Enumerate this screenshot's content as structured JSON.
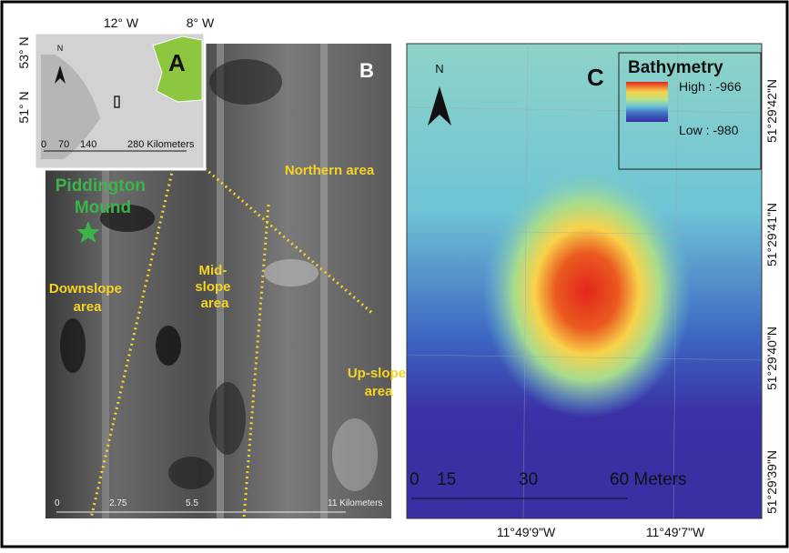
{
  "panel_a": {
    "label": "A",
    "north": "N",
    "lon_labels": [
      "12° W",
      "8° W"
    ],
    "lat_labels": [
      "53° N",
      "51° N"
    ],
    "scale": [
      "0",
      "70",
      "140",
      "280 Kilometers"
    ]
  },
  "panel_b": {
    "label": "B",
    "site": [
      "Piddington",
      "Mound"
    ],
    "areas": [
      [
        "Northern area"
      ],
      [
        "Downslope",
        "area"
      ],
      [
        "Mid-",
        "slope",
        "area"
      ],
      [
        "Up-slope",
        "area"
      ]
    ],
    "scale": [
      "0",
      "2.75",
      "5.5",
      "11 Kilometers"
    ]
  },
  "panel_c": {
    "label": "C",
    "north": "N",
    "legend": {
      "title": "Bathymetry",
      "high": "High : -966",
      "low": "Low : -980"
    },
    "scale": [
      "0",
      "15",
      "30",
      "60 Meters"
    ],
    "lat_labels": [
      "51°29'42\"N",
      "51°29'41\"N",
      "51°29'40\"N",
      "51°29'39\"N"
    ],
    "lon_labels": [
      "11°49'9\"W",
      "11°49'7\"W"
    ]
  }
}
